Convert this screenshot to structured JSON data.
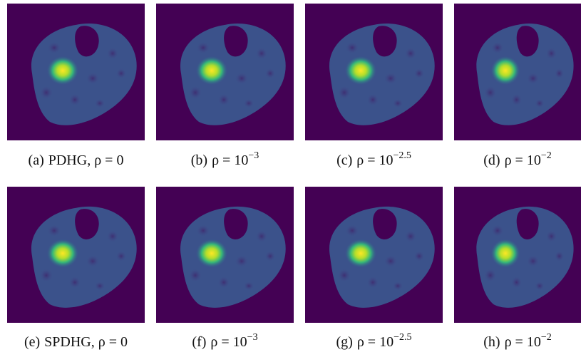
{
  "panels": [
    {
      "caption": {
        "label": "(a)",
        "text": "PDHG, ρ = 0"
      }
    },
    {
      "caption": {
        "label": "(b)",
        "text": "ρ = 10",
        "superscript": "−3"
      }
    },
    {
      "caption": {
        "label": "(c)",
        "text": "ρ = 10",
        "superscript": "−2.5"
      }
    },
    {
      "caption": {
        "label": "(d)",
        "text": "ρ = 10",
        "superscript": "−2"
      }
    },
    {
      "caption": {
        "label": "(e)",
        "text": "SPDHG, ρ = 0"
      }
    },
    {
      "caption": {
        "label": "(f)",
        "text": "ρ = 10",
        "superscript": "−3"
      }
    },
    {
      "caption": {
        "label": "(g)",
        "text": "ρ = 10",
        "superscript": "−2.5"
      }
    },
    {
      "caption": {
        "label": "(h)",
        "text": "ρ = 10",
        "superscript": "−2"
      }
    }
  ]
}
